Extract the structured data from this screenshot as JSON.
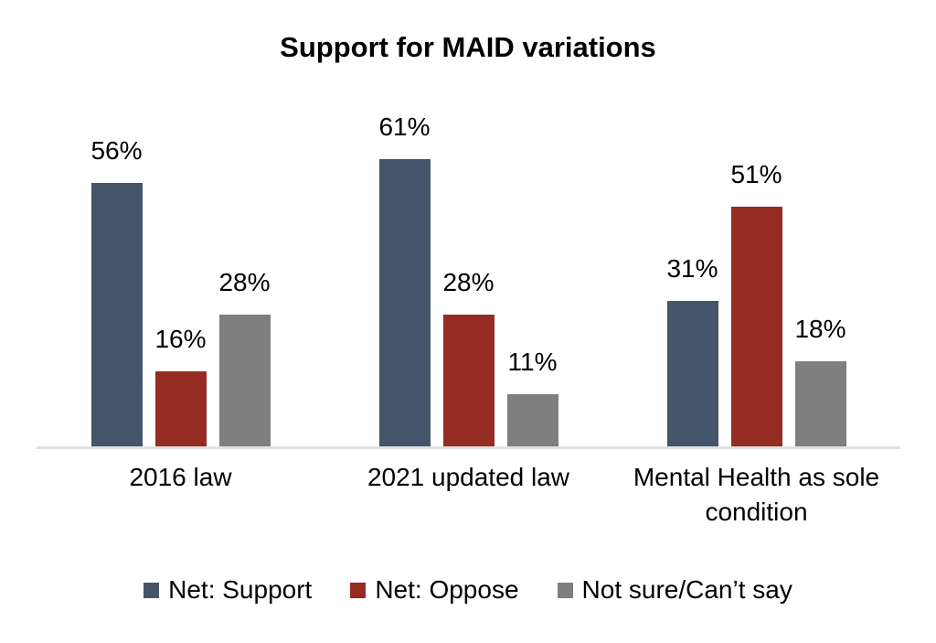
{
  "title": "Support for MAID variations",
  "chart_data": {
    "type": "bar",
    "title": "Support for MAID variations",
    "categories": [
      "2016 law",
      "2021 updated law",
      "Mental Health as sole condition"
    ],
    "series": [
      {
        "name": "Net: Support",
        "color": "#44546A",
        "values": [
          56,
          61,
          31
        ]
      },
      {
        "name": "Net: Oppose",
        "color": "#952B22",
        "values": [
          16,
          28,
          51
        ]
      },
      {
        "name": "Not sure/Can’t say",
        "color": "#7F7F7F",
        "values": [
          28,
          11,
          18
        ]
      }
    ],
    "data_label_format": "{value}%",
    "data_labels_shown": true,
    "xlabel": "",
    "ylabel": "",
    "ylim": [
      0,
      70
    ],
    "grid": false,
    "y_axis_ticks_shown": false,
    "legend_position": "bottom",
    "axis_line_color": "#E1E1E1",
    "background": "#FFFFFF",
    "text_color": "#000000"
  }
}
